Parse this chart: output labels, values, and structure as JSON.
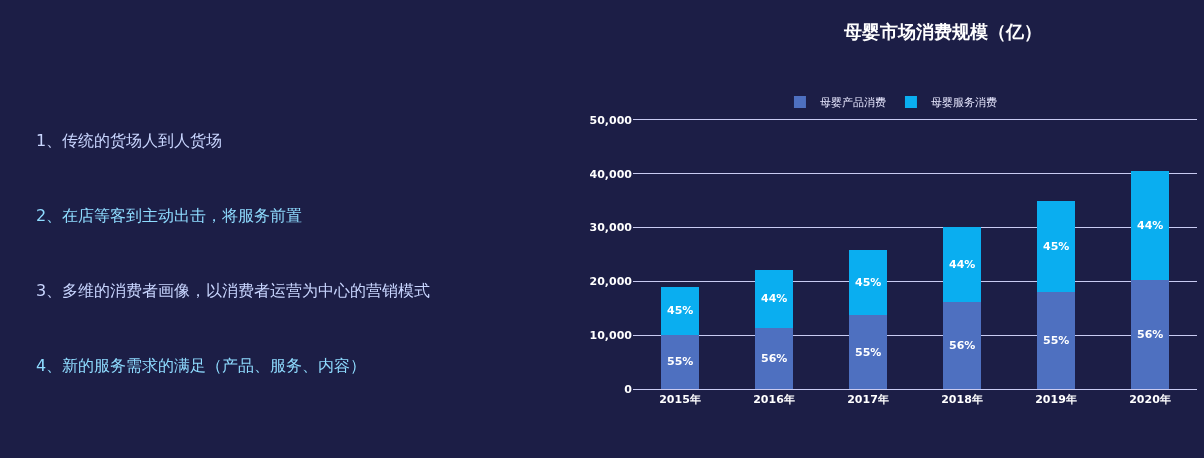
{
  "chart_data": [
    {
      "type": "other",
      "annotations": [
        "1、传统的货场人到人货场",
        "2、在店等客到主动出击，将服务前置",
        "3、多维的消费者画像，以消费者运营为中心的营销模式",
        "4、新的服务需求的满足（产品、服务、内容）"
      ]
    },
    {
      "type": "bar",
      "title": "母婴市场消费规模（亿）",
      "categories": [
        "2015年",
        "2016年",
        "2017年",
        "2018年",
        "2019年",
        "2020年"
      ],
      "stacked": true,
      "series": [
        {
          "name": "母婴产品消费",
          "color": "#4e70c0",
          "values": [
            10100,
            11400,
            13700,
            16100,
            18100,
            20300
          ]
        },
        {
          "name": "母婴服务消费",
          "color": "#0aaef0",
          "values": [
            8900,
            10800,
            12200,
            14100,
            16900,
            20300
          ]
        }
      ],
      "annotations": [
        "55%",
        "56%",
        "55%",
        "56%",
        "55%",
        "56%",
        "45%",
        "44%",
        "45%",
        "44%",
        "45%",
        "44%"
      ],
      "ylim": [
        0,
        50000
      ],
      "yticks": [
        0,
        {
          "value": 10000,
          "label": "10,000"
        },
        {
          "value": 20000,
          "label": "20,000"
        },
        {
          "value": 30000,
          "label": "30,000"
        },
        {
          "value": 40000,
          "label": "40,000"
        },
        {
          "value": 50000,
          "label": "50,000"
        }
      ],
      "grid": "y",
      "legend": "top"
    }
  ]
}
